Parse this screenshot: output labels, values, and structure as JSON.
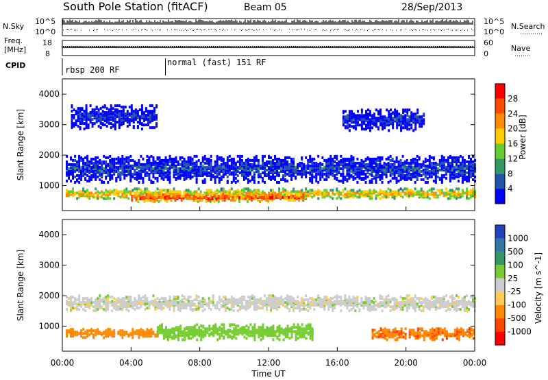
{
  "header": {
    "station": "South Pole Station (fitACF)",
    "beam": "Beam 05",
    "date": "28/Sep/2013"
  },
  "panels_top": {
    "nsky_label": "N.Sky",
    "nsky_ticks": [
      "10^5",
      "10^0"
    ],
    "nsearch_label": "N.Search",
    "nsearch_ticks": [
      "10^5",
      "10^0"
    ],
    "freq_label_1": "Freq.",
    "freq_label_2": "[MHz]",
    "freq_ticks": [
      "18",
      "8"
    ],
    "nave_label": "Nave",
    "nave_ticks": [
      "60",
      "0"
    ],
    "cpid_label": "CPID",
    "cpid_segments": [
      {
        "label": "rbsp 200 RF",
        "start_hour": 0,
        "end_hour": 6
      },
      {
        "label": "normal (fast) 151 RF",
        "start_hour": 6,
        "end_hour": 24
      }
    ]
  },
  "chart_data": [
    {
      "type": "heatmap",
      "panel": "power",
      "ylabel": "Slant Range [km]",
      "xlabel": "",
      "ylim": [
        180,
        4500
      ],
      "xlim": [
        0,
        24
      ],
      "yticks": [
        "1000",
        "2000",
        "3000",
        "4000"
      ],
      "colorbar_label": "Power [dB]",
      "colorbar_ticks": [
        "28",
        "24",
        "20",
        "16",
        "12",
        "8",
        "4"
      ],
      "colorbar_colors": [
        "#ff0000",
        "#ff4a00",
        "#ff8c00",
        "#ffcc00",
        "#66cc33",
        "#339966",
        "#2255aa",
        "#0000ff"
      ],
      "bands": [
        {
          "t0": 0.2,
          "t1": 24,
          "range_center": 780,
          "width": 320,
          "level": 22
        },
        {
          "t0": 4.0,
          "t1": 14.0,
          "range_center": 650,
          "width": 260,
          "level": 28
        },
        {
          "t0": 0.2,
          "t1": 24,
          "range_center": 1600,
          "width": 900,
          "level": 7
        },
        {
          "t0": 0.5,
          "t1": 5.5,
          "range_center": 3300,
          "width": 800,
          "level": 6
        },
        {
          "t0": 16.3,
          "t1": 21.0,
          "range_center": 3200,
          "width": 700,
          "level": 6
        }
      ]
    },
    {
      "type": "heatmap",
      "panel": "velocity",
      "ylabel": "Slant Range [km]",
      "xlabel": "Time UT",
      "ylim": [
        180,
        4500
      ],
      "xlim": [
        0,
        24
      ],
      "yticks": [
        "1000",
        "2000",
        "3000",
        "4000"
      ],
      "xticks": [
        "00:00",
        "04:00",
        "08:00",
        "12:00",
        "16:00",
        "20:00",
        "00:00"
      ],
      "colorbar_label": "Velocity [m s^-1]",
      "colorbar_ticks": [
        "1000",
        "500",
        "100",
        "25",
        "-25",
        "-100",
        "-500",
        "-1000"
      ],
      "colorbar_colors": [
        "#2244bb",
        "#3377aa",
        "#339966",
        "#77cc33",
        "#cccccc",
        "#ffcc55",
        "#ff8800",
        "#ff4400",
        "#ff0000"
      ],
      "bands": [
        {
          "t0": 0.2,
          "t1": 5.5,
          "range_center": 820,
          "width": 300,
          "level": -300
        },
        {
          "t0": 5.5,
          "t1": 14.5,
          "range_center": 850,
          "width": 500,
          "level": 60
        },
        {
          "t0": 0.2,
          "t1": 24,
          "range_center": 1800,
          "width": 500,
          "level": 0
        },
        {
          "t0": 18.0,
          "t1": 24,
          "range_center": 800,
          "width": 400,
          "level": -400
        }
      ]
    }
  ]
}
